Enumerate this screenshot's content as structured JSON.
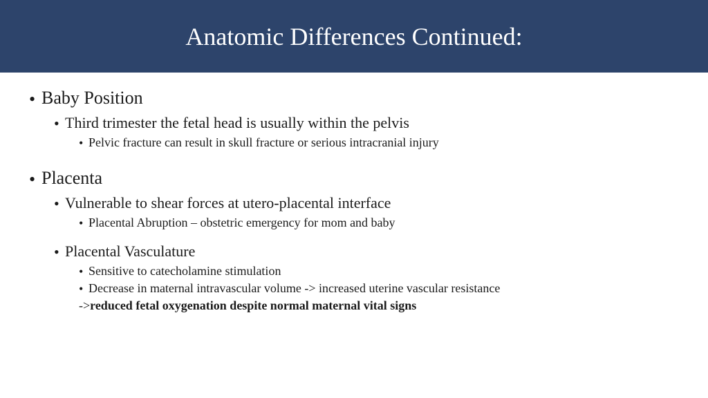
{
  "header": {
    "background_color": "#2d446b",
    "title": "Anatomic Differences Continued:",
    "title_color": "#ffffff",
    "title_fontsize": 36
  },
  "body": {
    "text_color": "#1a1a1a",
    "l1_fontsize": 26,
    "l2_fontsize": 22,
    "l3_fontsize": 18
  },
  "sec1": {
    "title": "Baby Position",
    "sub": "Third trimester the fetal head is usually within the pelvis",
    "detail": "Pelvic fracture can result in skull fracture or serious intracranial injury"
  },
  "sec2": {
    "title": "Placenta",
    "sub": "Vulnerable to shear forces at utero-placental interface",
    "detail": "Placental Abruption – obstetric emergency for mom and baby"
  },
  "sec2b": {
    "sub": "Placental Vasculature",
    "d1": "Sensitive to catecholamine stimulation",
    "d2": "Decrease in maternal intravascular volume -> increased uterine vascular resistance",
    "arrow_prefix": "->",
    "emphasis": "reduced fetal oxygenation despite normal maternal vital signs"
  }
}
